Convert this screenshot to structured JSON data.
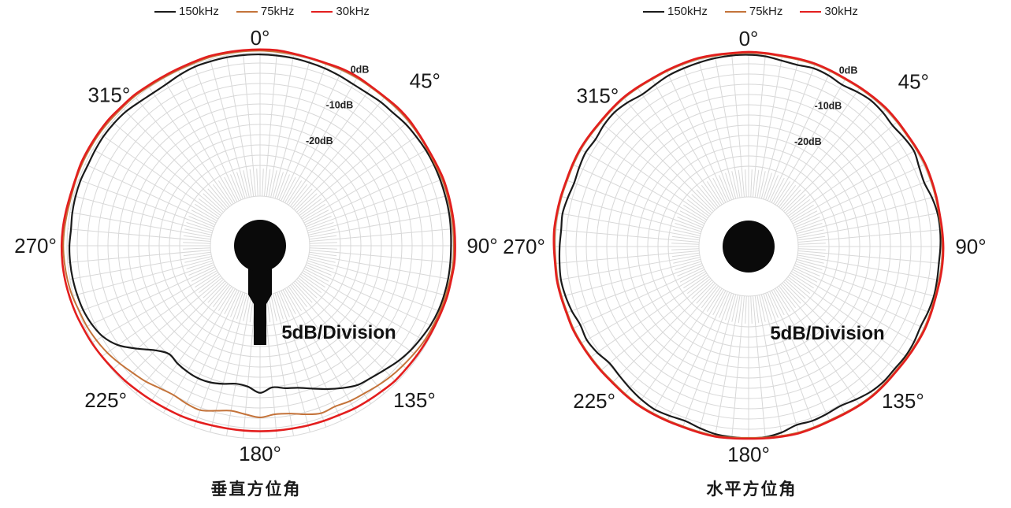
{
  "page": {
    "background": "#ffffff"
  },
  "legend": {
    "items": [
      {
        "label": "150kHz",
        "color": "#1a1a1a"
      },
      {
        "label": "75kHz",
        "color": "#c4733a"
      },
      {
        "label": "30kHz",
        "color": "#e31e1e"
      }
    ]
  },
  "chart_data": [
    {
      "type": "polar-line",
      "title": "垂直方位角",
      "division_label": "5dB/Division",
      "center_icon": "microphone-side-icon",
      "angle_step_deg": 5,
      "angle_start_deg": 0,
      "angle_labels": [
        "0°",
        "45°",
        "90°",
        "135°",
        "180°",
        "225°",
        "270°",
        "315°"
      ],
      "radial_axis": {
        "unit": "dB",
        "db_per_division": 5,
        "max_db": 0,
        "min_db": -35,
        "ring_labels": [
          {
            "label": "0dB",
            "db": 0
          },
          {
            "label": "-10dB",
            "db": -10
          },
          {
            "label": "-20dB",
            "db": -20
          }
        ]
      },
      "series": [
        {
          "name": "150kHz",
          "color": "#1a1a1a",
          "values": [
            -0.4,
            -0.5,
            -0.6,
            -0.8,
            -1.0,
            -1.3,
            -1.6,
            -1.6,
            -1.3,
            -1.2,
            -0.8,
            -0.6,
            -0.4,
            -0.3,
            -0.3,
            -0.3,
            -0.3,
            -0.4,
            -0.5,
            -0.5,
            -0.5,
            -0.6,
            -0.8,
            -1.2,
            -1.8,
            -2.4,
            -3.2,
            -4.2,
            -5.0,
            -5.6,
            -7.0,
            -8.5,
            -10.0,
            -11.2,
            -11.8,
            -12.4,
            -11.2,
            -12.6,
            -12.9,
            -12.2,
            -11.6,
            -11.4,
            -11.6,
            -12.0,
            -12.6,
            -11.0,
            -8.0,
            -4.8,
            -2.8,
            -1.8,
            -1.2,
            -0.9,
            -0.7,
            -0.6,
            -0.6,
            -0.8,
            -0.6,
            -0.5,
            -0.5,
            -0.7,
            -0.6,
            -0.5,
            -0.6,
            -0.8,
            -1.3,
            -1.6,
            -1.5,
            -1.0,
            -0.6,
            -0.5,
            -0.4,
            -0.4
          ]
        },
        {
          "name": "75kHz",
          "color": "#c4733a",
          "values": [
            0.5,
            0.4,
            0.3,
            0.2,
            0.1,
            0.2,
            0.2,
            0.1,
            0.1,
            0.2,
            0.2,
            0.1,
            0.0,
            0.0,
            0.2,
            0.2,
            0.2,
            0.2,
            0.2,
            0.2,
            0.0,
            -0.2,
            -0.4,
            -0.6,
            -0.8,
            -1.2,
            -1.6,
            -2.0,
            -2.5,
            -3.0,
            -3.3,
            -3.8,
            -3.6,
            -4.5,
            -5.5,
            -5.8,
            -5.2,
            -5.8,
            -6.2,
            -5.4,
            -4.4,
            -4.6,
            -5.0,
            -4.6,
            -3.8,
            -3.2,
            -2.4,
            -1.6,
            -1.0,
            -0.5,
            -0.2,
            0.3,
            0.6,
            0.8,
            0.9,
            0.8,
            0.6,
            0.5,
            0.6,
            0.7,
            0.7,
            0.7,
            0.6,
            0.5,
            0.5,
            0.3,
            0.2,
            0.2,
            0.3,
            0.5,
            0.5,
            0.5
          ]
        },
        {
          "name": "30kHz",
          "color": "#e31e1e",
          "values": [
            0.8,
            0.8,
            0.5,
            0.3,
            0.3,
            0.5,
            0.5,
            0.3,
            0.3,
            0.5,
            0.5,
            0.3,
            0.2,
            0.3,
            0.5,
            0.5,
            0.5,
            0.5,
            0.5,
            0.5,
            0.3,
            0.2,
            0.0,
            -0.2,
            -0.3,
            -0.4,
            -0.5,
            -0.5,
            -0.8,
            -1.0,
            -1.2,
            -1.5,
            -1.6,
            -1.7,
            -1.8,
            -1.8,
            -1.8,
            -1.8,
            -1.8,
            -1.7,
            -1.5,
            -1.3,
            -1.2,
            -1.0,
            -0.8,
            -0.5,
            -0.3,
            0.0,
            0.3,
            0.5,
            0.8,
            1.0,
            1.2,
            1.3,
            1.3,
            1.2,
            1.0,
            0.8,
            0.8,
            1.0,
            1.0,
            1.0,
            1.0,
            0.8,
            0.8,
            0.6,
            0.5,
            0.5,
            0.6,
            0.8,
            0.8,
            0.8
          ]
        }
      ]
    },
    {
      "type": "polar-line",
      "title": "水平方位角",
      "division_label": "5dB/Division",
      "center_icon": "microphone-top-icon",
      "angle_step_deg": 5,
      "angle_start_deg": 0,
      "angle_labels": [
        "0°",
        "45°",
        "90°",
        "135°",
        "180°",
        "225°",
        "270°",
        "315°"
      ],
      "radial_axis": {
        "unit": "dB",
        "db_per_division": 5,
        "max_db": 0,
        "min_db": -35,
        "ring_labels": [
          {
            "label": "0dB",
            "db": 0
          },
          {
            "label": "-10dB",
            "db": -10
          },
          {
            "label": "-20dB",
            "db": -20
          }
        ]
      },
      "series": [
        {
          "name": "150kHz",
          "color": "#1a1a1a",
          "values": [
            -0.3,
            -0.5,
            -1.0,
            -1.2,
            -0.8,
            -1.0,
            -1.5,
            -1.0,
            -0.6,
            -0.8,
            -1.2,
            -0.8,
            -0.5,
            -1.2,
            -1.5,
            -0.8,
            -0.3,
            -0.2,
            -0.3,
            -0.5,
            -0.4,
            -0.3,
            -0.5,
            -0.8,
            -0.5,
            -0.4,
            -0.6,
            -0.5,
            -0.8,
            -1.5,
            -2.2,
            -2.0,
            -1.8,
            -2.0,
            -1.0,
            -0.4,
            -0.3,
            -0.4,
            -0.6,
            -1.2,
            -1.8,
            -1.5,
            -1.2,
            -1.5,
            -2.0,
            -2.5,
            -2.8,
            -2.0,
            -1.5,
            -1.8,
            -1.2,
            -0.8,
            -0.6,
            -0.8,
            -1.0,
            -1.2,
            -1.0,
            -1.4,
            -1.8,
            -1.5,
            -1.2,
            -1.5,
            -1.0,
            -0.8,
            -1.2,
            -1.8,
            -1.5,
            -1.0,
            -0.8,
            -0.6,
            -0.4,
            -0.3
          ]
        },
        {
          "name": "75kHz",
          "color": "#c4733a",
          "values": [
            0.2,
            0.1,
            0.0,
            0.1,
            0.2,
            0.1,
            0.0,
            0.1,
            0.2,
            0.3,
            0.2,
            0.1,
            0.2,
            0.3,
            0.2,
            0.1,
            0.0,
            0.1,
            0.2,
            0.2,
            0.1,
            0.0,
            0.1,
            0.2,
            0.1,
            0.0,
            -0.1,
            0.0,
            0.1,
            0.0,
            -0.2,
            -0.3,
            -0.2,
            -0.1,
            -0.2,
            -0.3,
            -0.4,
            -0.3,
            -0.2,
            -0.3,
            -0.4,
            -0.3,
            -0.2,
            -0.1,
            -0.2,
            -0.3,
            -0.2,
            -0.1,
            0.0,
            0.1,
            0.0,
            0.1,
            0.2,
            0.1,
            0.2,
            0.3,
            0.2,
            0.1,
            0.0,
            0.1,
            0.2,
            0.1,
            0.0,
            0.1,
            0.2,
            0.1,
            0.0,
            0.1,
            0.2,
            0.3,
            0.2,
            0.1
          ]
        },
        {
          "name": "30kHz",
          "color": "#e31e1e",
          "values": [
            0.4,
            0.3,
            0.2,
            0.3,
            0.4,
            0.3,
            0.2,
            0.3,
            0.4,
            0.5,
            0.4,
            0.3,
            0.4,
            0.5,
            0.4,
            0.3,
            0.2,
            0.3,
            0.4,
            0.4,
            0.3,
            0.2,
            0.3,
            0.4,
            0.3,
            0.2,
            0.1,
            0.2,
            0.3,
            0.2,
            0.0,
            -0.1,
            0.0,
            0.1,
            0.0,
            -0.1,
            -0.2,
            -0.1,
            0.0,
            -0.1,
            -0.2,
            -0.1,
            0.0,
            0.1,
            0.0,
            -0.1,
            0.0,
            0.1,
            0.2,
            0.3,
            0.2,
            0.3,
            0.4,
            0.3,
            0.4,
            0.5,
            0.4,
            0.3,
            0.2,
            0.3,
            0.4,
            0.3,
            0.2,
            0.3,
            0.4,
            0.3,
            0.2,
            0.3,
            0.4,
            0.5,
            0.4,
            0.3
          ]
        }
      ]
    }
  ]
}
